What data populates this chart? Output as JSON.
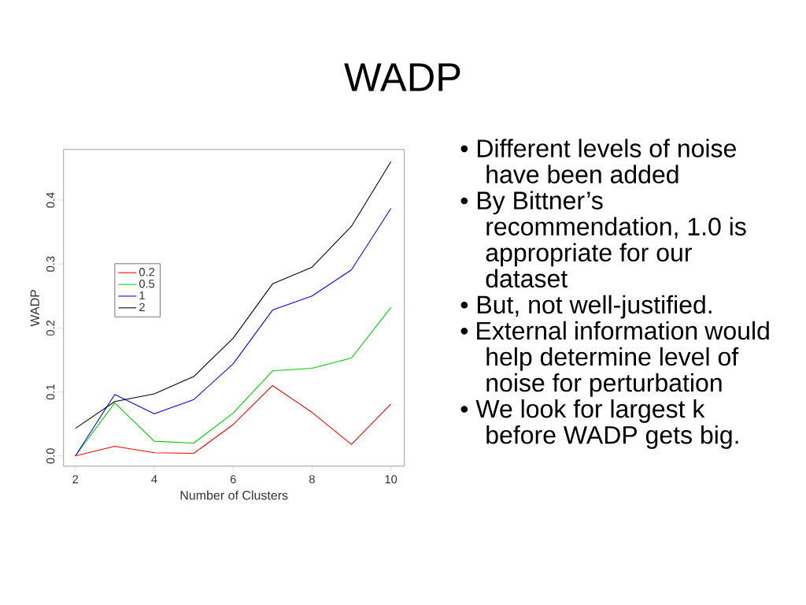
{
  "chart_data": {
    "type": "line",
    "title": "WADP",
    "xlabel": "Number of Clusters",
    "ylabel": "WADP",
    "x": [
      2,
      3,
      4,
      5,
      6,
      7,
      8,
      9,
      10
    ],
    "series": [
      {
        "name": "0.2",
        "color": "#ff0000",
        "values": [
          0,
          0.015,
          0.005,
          0.004,
          0.049,
          0.11,
          0.068,
          0.018,
          0.081
        ]
      },
      {
        "name": "0.5",
        "color": "#00cc00",
        "values": [
          0,
          0.083,
          0.023,
          0.02,
          0.067,
          0.133,
          0.137,
          0.153,
          0.232
        ]
      },
      {
        "name": "1",
        "color": "#0000ff",
        "values": [
          0,
          0.096,
          0.066,
          0.088,
          0.144,
          0.228,
          0.25,
          0.291,
          0.387
        ]
      },
      {
        "name": "2",
        "color": "#000000",
        "values": [
          0.043,
          0.085,
          0.097,
          0.124,
          0.184,
          0.269,
          0.295,
          0.359,
          0.46
        ]
      }
    ],
    "xlim": [
      1.7,
      10.34
    ],
    "ylim": [
      -0.016,
      0.479
    ],
    "xticks": [
      2,
      4,
      6,
      8,
      10
    ],
    "yticks": [
      {
        "value": 0,
        "label": "0.0"
      },
      0.1,
      0.2,
      0.3,
      0.4
    ],
    "grid": false,
    "legend": "left",
    "marker": "none",
    "line_style": "solid",
    "annotations": [
      "• Different levels of noise have been added",
      "• By Bittner’s recommendation, 1.0 is appropriate for our dataset",
      "• But, not well-justified.",
      "• External information would help determine level of noise for perturbation",
      "• We look for largest k before WADP gets big."
    ]
  }
}
